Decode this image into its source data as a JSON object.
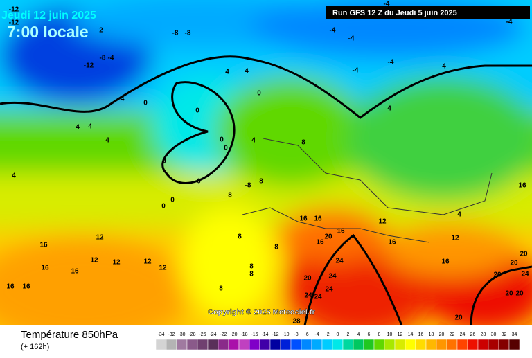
{
  "header": {
    "date": "Jeudi 12 juin 2025",
    "local_time": "7:00 locale",
    "run": "Run GFS 12 Z du Jeudi 5 juin 2025"
  },
  "copyright": "Copyright © 2025 Meteociel.fr",
  "footer": {
    "title": "Température 850hPa",
    "lead": "(+ 162h)"
  },
  "colorbar": {
    "ticks": [
      -34,
      -32,
      -30,
      -28,
      -26,
      -24,
      -22,
      -20,
      -18,
      -16,
      -14,
      -12,
      -10,
      -8,
      -6,
      -4,
      -2,
      0,
      2,
      4,
      6,
      8,
      10,
      12,
      14,
      16,
      18,
      20,
      22,
      24,
      26,
      28,
      30,
      32,
      34
    ],
    "colors": [
      "#d4d4d4",
      "#b4b4b4",
      "#a07aa0",
      "#8a5a8a",
      "#704070",
      "#5a305a",
      "#8a2a8a",
      "#aa10aa",
      "#c040c0",
      "#8000c8",
      "#4000a8",
      "#0000a0",
      "#0020d8",
      "#0050ff",
      "#0088ff",
      "#00aaff",
      "#00ccff",
      "#00e8e8",
      "#00d8a0",
      "#00c860",
      "#20c820",
      "#60d800",
      "#a8e800",
      "#d8ec00",
      "#ffff00",
      "#ffdc00",
      "#ffb800",
      "#ff9600",
      "#ff7200",
      "#ff4400",
      "#ee1000",
      "#cc0000",
      "#a80000",
      "#840000",
      "#560000"
    ]
  },
  "contour_labels": [
    -12,
    -12,
    -4,
    -4,
    -4,
    -4,
    -8,
    -8,
    -8,
    -4,
    -12,
    -4,
    4,
    4,
    -4,
    4,
    -4,
    0,
    0,
    0,
    4,
    4,
    4,
    4,
    0,
    0,
    4,
    8,
    0,
    4,
    0,
    -8,
    8,
    16,
    8,
    0,
    0,
    16,
    16,
    12,
    4,
    16,
    20,
    16,
    12,
    16,
    12,
    8,
    8,
    16,
    12,
    12,
    12,
    12,
    16,
    16,
    24,
    16,
    20,
    20,
    20,
    24,
    20,
    24,
    16,
    16,
    8,
    8,
    24,
    24,
    24,
    8,
    20,
    20,
    20,
    28,
    2
  ]
}
